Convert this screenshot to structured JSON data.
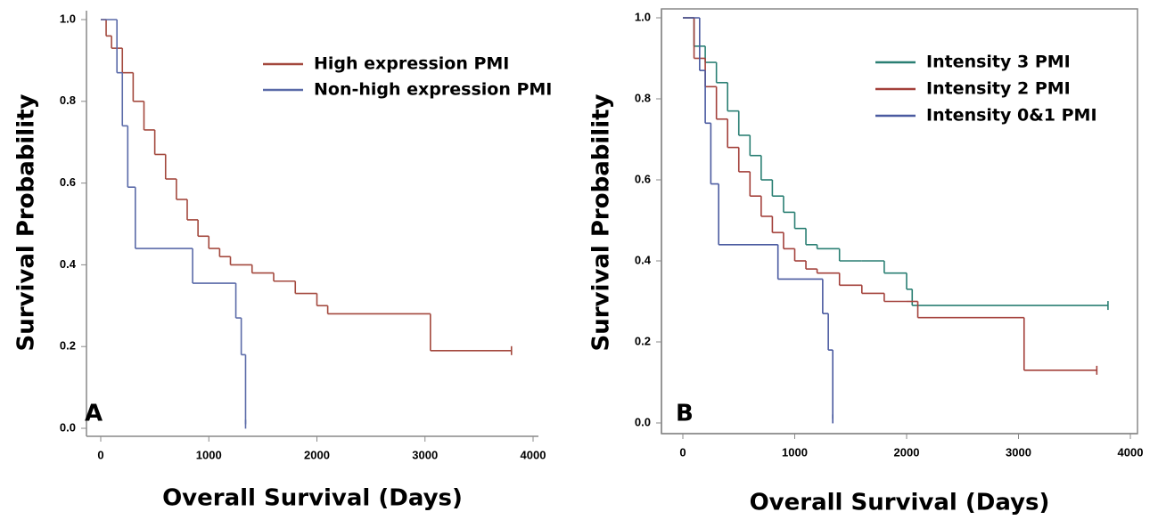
{
  "chart_data": [
    {
      "type": "line",
      "step": true,
      "panel_label": "A",
      "x_label": "Overall Survival (Days)",
      "y_label": "Survival Probability",
      "xlim": [
        0,
        4000
      ],
      "xticks": [
        0,
        1000,
        2000,
        3000,
        4000
      ],
      "ylim": [
        0,
        1
      ],
      "yticks": [
        {
          "value": 0,
          "label": "0.0"
        },
        0.2,
        0.4,
        0.6,
        0.8,
        {
          "value": 1,
          "label": "1.0"
        }
      ],
      "frame": false,
      "series": [
        {
          "name": "High expression PMI",
          "color": "#a3483d",
          "x": [
            0,
            50,
            100,
            200,
            300,
            400,
            500,
            600,
            700,
            800,
            900,
            1000,
            1100,
            1200,
            1400,
            1600,
            1800,
            2000,
            2100,
            3050,
            3800
          ],
          "values": [
            1.0,
            0.96,
            0.93,
            0.87,
            0.8,
            0.73,
            0.67,
            0.61,
            0.56,
            0.51,
            0.47,
            0.44,
            0.42,
            0.4,
            0.38,
            0.36,
            0.33,
            0.3,
            0.28,
            0.19,
            0.19
          ]
        },
        {
          "name": "Non-high expression PMI",
          "color": "#5a6aa8",
          "x": [
            0,
            150,
            200,
            250,
            320,
            850,
            1250,
            1300,
            1340
          ],
          "values": [
            1.0,
            0.87,
            0.74,
            0.59,
            0.44,
            0.355,
            0.27,
            0.18,
            0.01
          ]
        }
      ]
    },
    {
      "type": "line",
      "step": true,
      "panel_label": "B",
      "x_label": "Overall Survival (Days)",
      "y_label": "Survival Probability",
      "xlim": [
        0,
        4000
      ],
      "xticks": [
        0,
        1000,
        2000,
        3000,
        4000
      ],
      "ylim": [
        0,
        1
      ],
      "yticks": [
        {
          "value": 0,
          "label": "0.0"
        },
        0.2,
        0.4,
        0.6,
        0.8,
        {
          "value": 1,
          "label": "1.0"
        }
      ],
      "frame": true,
      "series": [
        {
          "name": "Intensity 3 PMI",
          "color": "#2a7f73",
          "x": [
            0,
            100,
            200,
            300,
            400,
            500,
            600,
            700,
            800,
            900,
            1000,
            1100,
            1200,
            1400,
            1600,
            1800,
            2000,
            2050,
            3800
          ],
          "values": [
            1.0,
            0.93,
            0.89,
            0.84,
            0.77,
            0.71,
            0.66,
            0.6,
            0.56,
            0.52,
            0.48,
            0.44,
            0.43,
            0.4,
            0.4,
            0.37,
            0.33,
            0.29,
            0.29
          ]
        },
        {
          "name": "Intensity 2 PMI",
          "color": "#a3403a",
          "x": [
            0,
            100,
            200,
            300,
            400,
            500,
            600,
            700,
            800,
            900,
            1000,
            1100,
            1200,
            1400,
            1600,
            1800,
            2000,
            2100,
            3050,
            3700
          ],
          "values": [
            1.0,
            0.9,
            0.83,
            0.75,
            0.68,
            0.62,
            0.56,
            0.51,
            0.47,
            0.43,
            0.4,
            0.38,
            0.37,
            0.34,
            0.32,
            0.3,
            0.3,
            0.26,
            0.13,
            0.13
          ]
        },
        {
          "name": "Intensity 0&1 PMI",
          "color": "#4a5aa0",
          "x": [
            0,
            150,
            200,
            250,
            320,
            850,
            1250,
            1300,
            1340
          ],
          "values": [
            1.0,
            0.87,
            0.74,
            0.59,
            0.44,
            0.355,
            0.27,
            0.18,
            0.01
          ]
        }
      ]
    }
  ]
}
